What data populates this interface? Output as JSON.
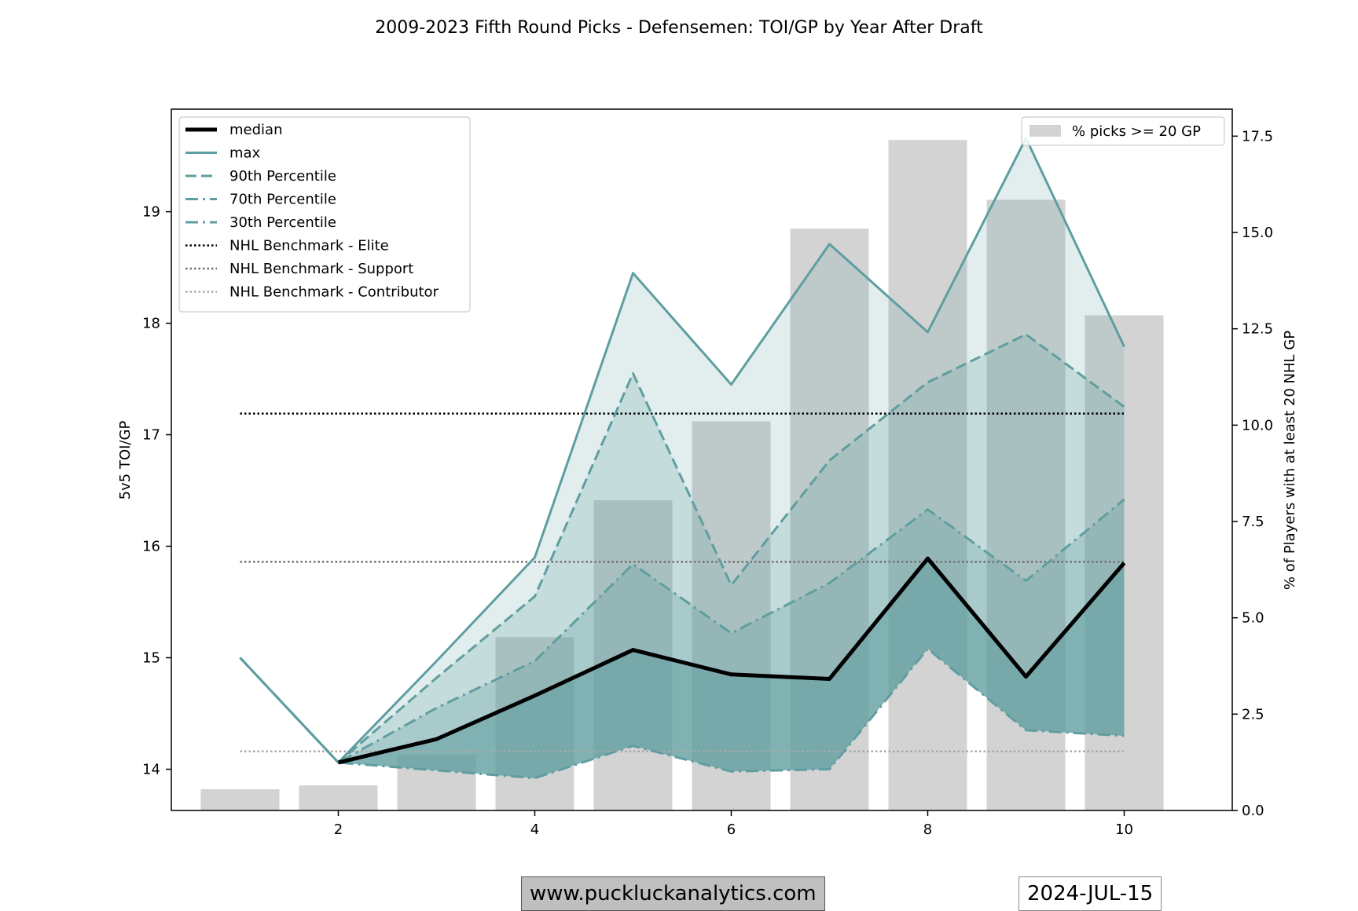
{
  "chart_data": {
    "type": "line",
    "title": "2009-2023 Fifth Round Picks - Defensemen: TOI/GP by Year After Draft",
    "ylabel": "5v5 TOI/GP",
    "y2label": "% of Players with at least 20 NHL GP",
    "xlabel": "",
    "xlim": [
      0.3,
      11.1
    ],
    "ylim": [
      13.63,
      19.92
    ],
    "y2lim": [
      0,
      18.2
    ],
    "xticks": [
      2,
      4,
      6,
      8,
      10
    ],
    "yticks": [
      14,
      15,
      16,
      17,
      18,
      19
    ],
    "y2ticks": [
      "0.0",
      "2.5",
      "5.0",
      "7.5",
      "10.0",
      "12.5",
      "15.0",
      "17.5"
    ],
    "x": [
      1,
      2,
      3,
      4,
      5,
      6,
      7,
      8,
      9,
      10
    ],
    "series": [
      {
        "name": "median",
        "style": "solid",
        "color": "#000000",
        "values": [
          null,
          14.06,
          14.27,
          14.66,
          15.07,
          14.85,
          14.81,
          15.89,
          14.83,
          15.85
        ]
      },
      {
        "name": "max",
        "style": "solid",
        "color": "#5f9ea0",
        "values": [
          15.0,
          14.06,
          14.97,
          15.9,
          18.45,
          17.45,
          18.71,
          17.92,
          19.66,
          17.79
        ]
      },
      {
        "name": "90th Percentile",
        "style": "dashed",
        "color": "#5f9ea0",
        "values": [
          15.0,
          14.06,
          14.82,
          15.55,
          17.55,
          15.65,
          16.77,
          17.47,
          17.9,
          17.25
        ]
      },
      {
        "name": "70th Percentile",
        "style": "dashdot",
        "color": "#5f9ea0",
        "values": [
          15.0,
          14.06,
          14.55,
          14.97,
          15.84,
          15.22,
          15.67,
          16.33,
          15.69,
          16.42
        ]
      },
      {
        "name": "30th Percentile",
        "style": "dashdot",
        "color": "#5f9ea0",
        "values": [
          15.0,
          14.06,
          13.99,
          13.92,
          14.21,
          13.98,
          14.0,
          15.08,
          14.35,
          14.3
        ]
      }
    ],
    "benchmarks": [
      {
        "name": "NHL Benchmark - Elite",
        "value": 17.19,
        "color": "#000000"
      },
      {
        "name": "NHL Benchmark - Support",
        "value": 15.86,
        "color": "#707070"
      },
      {
        "name": "NHL Benchmark - Contributor",
        "value": 14.16,
        "color": "#a8a8a8"
      }
    ],
    "bars": {
      "name": "% picks >= 20 GP",
      "color": "#d3d3d3",
      "values": [
        0.55,
        0.65,
        1.45,
        4.5,
        8.05,
        10.1,
        15.1,
        17.4,
        15.85,
        12.85
      ]
    },
    "fill_color": "#5f9ea0",
    "legend": {
      "main": "top-left",
      "bars": "top-right"
    },
    "grid": false
  },
  "footer": {
    "website": "www.puckluckanalytics.com",
    "date": "2024-JUL-15"
  }
}
